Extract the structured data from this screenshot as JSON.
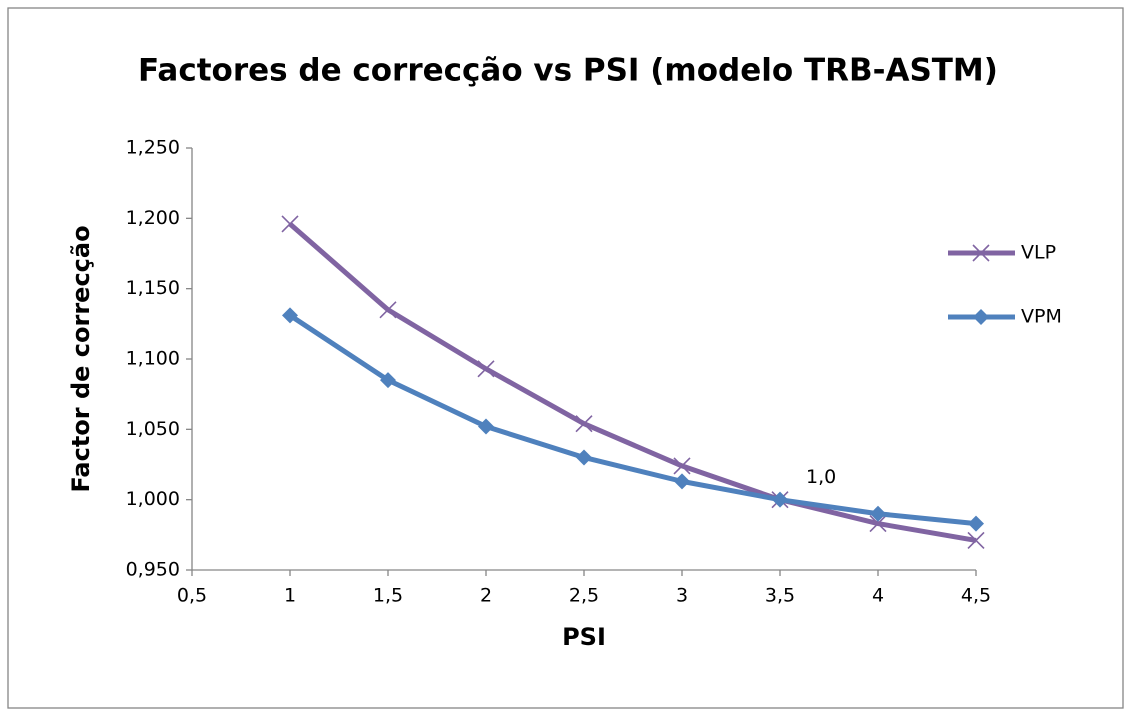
{
  "chart_data": {
    "type": "line",
    "title": "Factores de correcção vs PSI (modelo TRB-ASTM)",
    "x_label": "PSI",
    "y_label": "Factor de correcção",
    "x": [
      1,
      1.5,
      2,
      2.5,
      3,
      3.5,
      4,
      4.5
    ],
    "series": [
      {
        "name": "VLP",
        "color": "#8064a2",
        "marker": "x",
        "values": [
          1.196,
          1.135,
          1.093,
          1.054,
          1.024,
          1.0,
          0.983,
          0.971
        ]
      },
      {
        "name": "VPM",
        "color": "#4f81bd",
        "marker": "diamond",
        "values": [
          1.131,
          1.085,
          1.052,
          1.03,
          1.013,
          1.0,
          0.99,
          0.983
        ]
      }
    ],
    "xlim": [
      0.5,
      4.5
    ],
    "xticks": [
      {
        "value": 0.5,
        "label": "0,5"
      },
      1,
      {
        "value": 1.5,
        "label": "1,5"
      },
      2,
      {
        "value": 2.5,
        "label": "2,5"
      },
      3,
      {
        "value": 3.5,
        "label": "3,5"
      },
      4,
      {
        "value": 4.5,
        "label": "4,5"
      }
    ],
    "ylim": [
      0.95,
      1.25
    ],
    "yticks": [
      {
        "value": 0.95,
        "label": "0,950"
      },
      {
        "value": 1.0,
        "label": "1,000"
      },
      {
        "value": 1.05,
        "label": "1,050"
      },
      {
        "value": 1.1,
        "label": "1,100"
      },
      {
        "value": 1.15,
        "label": "1,150"
      },
      {
        "value": 1.2,
        "label": "1,200"
      },
      {
        "value": 1.25,
        "label": "1,250"
      }
    ],
    "annotations": [
      {
        "text": "1,0",
        "x": 3.5,
        "y": 1.0
      }
    ],
    "grid": false,
    "legend": "right"
  }
}
